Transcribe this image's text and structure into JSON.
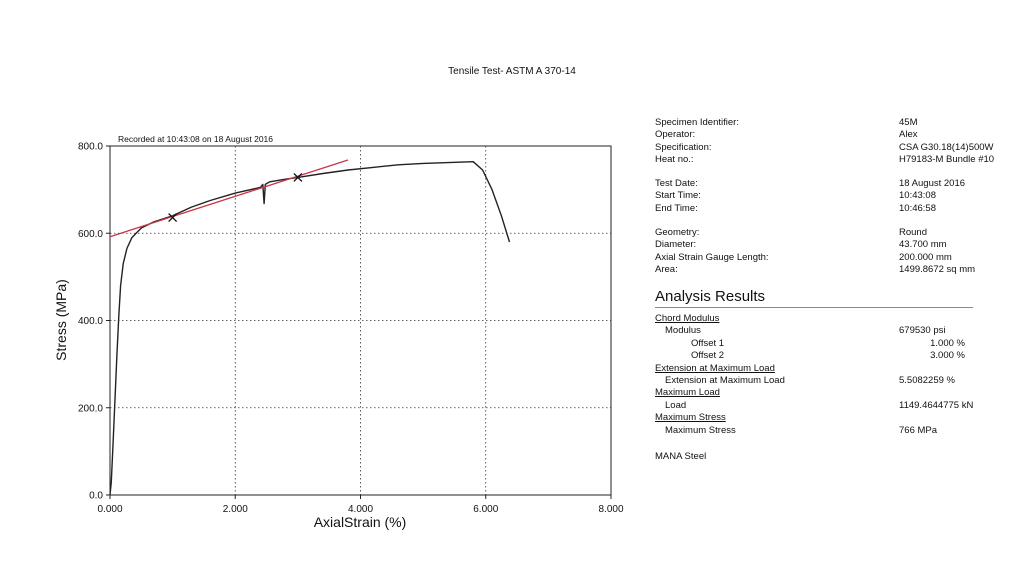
{
  "report": {
    "title": "Tensile Test- ASTM A 370-14",
    "recorded": "Recorded at 10:43:08 on 18 August 2016"
  },
  "chart_data": {
    "type": "line",
    "xlabel": "AxialStrain (%)",
    "ylabel": "Stress (MPa)",
    "xlim": [
      0,
      8
    ],
    "ylim": [
      0,
      800
    ],
    "x_ticks": [
      "0.000",
      "2.000",
      "4.000",
      "6.000",
      "8.000"
    ],
    "y_ticks": [
      "0.0",
      "200.0",
      "400.0",
      "600.0",
      "800.0"
    ],
    "grid": "dotted",
    "series": [
      {
        "color": "#222222",
        "points": [
          [
            0.0,
            0
          ],
          [
            0.02,
            30
          ],
          [
            0.05,
            120
          ],
          [
            0.08,
            220
          ],
          [
            0.11,
            320
          ],
          [
            0.14,
            410
          ],
          [
            0.17,
            480
          ],
          [
            0.21,
            530
          ],
          [
            0.27,
            565
          ],
          [
            0.35,
            590
          ],
          [
            0.5,
            612
          ],
          [
            0.7,
            626
          ],
          [
            1.0,
            640
          ],
          [
            1.3,
            660
          ],
          [
            1.6,
            675
          ],
          [
            2.0,
            692
          ],
          [
            2.4,
            705
          ],
          [
            2.44,
            712
          ],
          [
            2.46,
            668
          ],
          [
            2.48,
            712
          ],
          [
            2.55,
            718
          ],
          [
            2.8,
            724
          ],
          [
            3.0,
            728
          ],
          [
            3.4,
            737
          ],
          [
            3.8,
            745
          ],
          [
            4.2,
            751
          ],
          [
            4.6,
            757
          ],
          [
            5.0,
            760
          ],
          [
            5.4,
            762
          ],
          [
            5.8,
            764
          ],
          [
            5.95,
            745
          ],
          [
            6.1,
            700
          ],
          [
            6.25,
            640
          ],
          [
            6.38,
            580
          ]
        ]
      },
      {
        "color": "#cc3344",
        "points": [
          [
            0.0,
            592
          ],
          [
            3.8,
            768
          ]
        ]
      }
    ],
    "markers": [
      [
        1.0,
        636
      ],
      [
        3.0,
        728
      ]
    ]
  },
  "specimen": [
    {
      "label": "Specimen Identifier:",
      "value": "45M"
    },
    {
      "label": "Operator:",
      "value": "Alex"
    },
    {
      "label": "Specification:",
      "value": "CSA G30.18(14)500W"
    },
    {
      "label": "Heat no.:",
      "value": "H79183-M Bundle #10"
    }
  ],
  "dates": [
    {
      "label": "Test Date:",
      "value": "18 August 2016"
    },
    {
      "label": "Start Time:",
      "value": "10:43:08"
    },
    {
      "label": "End Time:",
      "value": "10:46:58"
    }
  ],
  "geometry": [
    {
      "label": "Geometry:",
      "value": "Round"
    },
    {
      "label": "Diameter:",
      "value": "43.700 mm"
    },
    {
      "label": "Axial Strain Gauge Length:",
      "value": "200.000 mm"
    },
    {
      "label": "Area:",
      "value": "1499.8672 sq mm"
    }
  ],
  "analysis": {
    "heading": "Analysis Results",
    "chord_modulus": "Chord Modulus",
    "modulus_label": "Modulus",
    "modulus_value": "679530 psi",
    "offset1_label": "Offset 1",
    "offset1_value": "1.000 %",
    "offset2_label": "Offset 2",
    "offset2_value": "3.000 %",
    "ext_heading": "Extension at Maximum Load",
    "ext_label": "Extension at Maximum Load",
    "ext_value": "5.5082259 %",
    "maxload_heading": "Maximum Load",
    "load_label": "Load",
    "load_value": "1149.4644775 kN",
    "maxstress_heading": "Maximum Stress",
    "maxstress_label": "Maximum Stress",
    "maxstress_value": "766 MPa"
  },
  "footer": "MANA Steel"
}
